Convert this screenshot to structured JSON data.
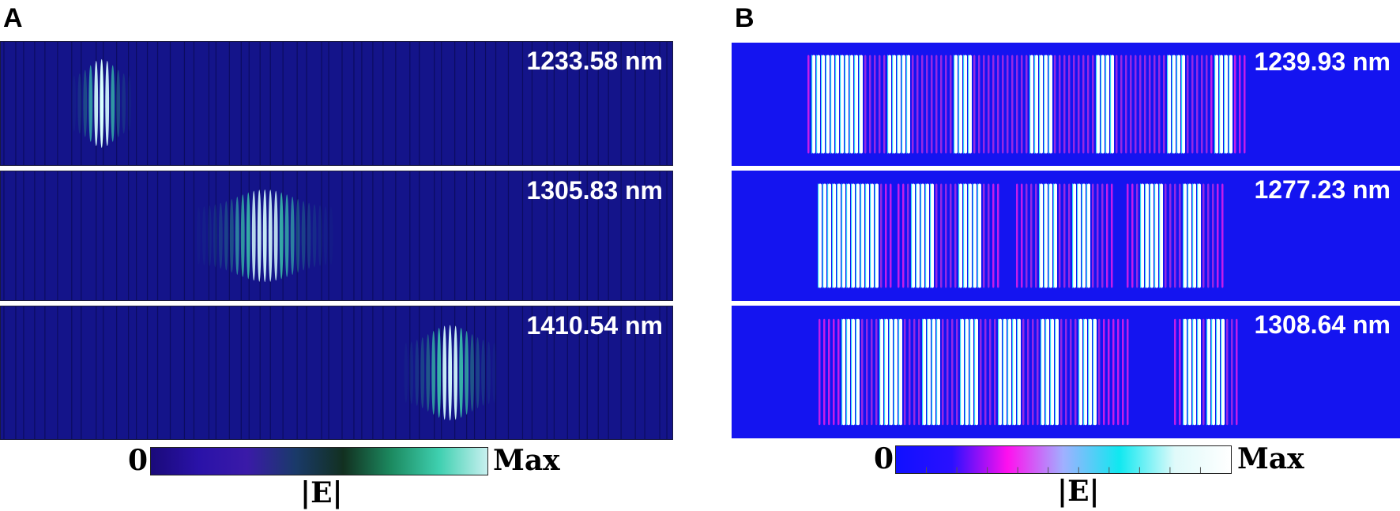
{
  "panels": [
    {
      "letter": "A",
      "wavelengths": [
        "1233.58 nm",
        "1305.83 nm",
        "1410.54 nm"
      ],
      "colorbar": {
        "min_label": "0",
        "max_label": "Max",
        "quantity_label": "|E|",
        "colors": [
          "#1a0a7a",
          "#2a12a8",
          "#3a1aa8",
          "#1a3a6a",
          "#123020",
          "#1c8a60",
          "#3fd0b0",
          "#c8f0f0"
        ]
      }
    },
    {
      "letter": "B",
      "wavelengths": [
        "1239.93 nm",
        "1277.23 nm",
        "1308.64 nm"
      ],
      "colorbar": {
        "min_label": "0",
        "max_label": "Max",
        "quantity_label": "|E|",
        "colors": [
          "#1010ff",
          "#2a10ff",
          "#ff10ee",
          "#a0b0ff",
          "#10e8f0",
          "#e0fafa",
          "#ffffff"
        ]
      }
    }
  ],
  "colors": {
    "a_background": "#14148a",
    "b_background": "#1414f0",
    "label_text": "#ffffff"
  }
}
